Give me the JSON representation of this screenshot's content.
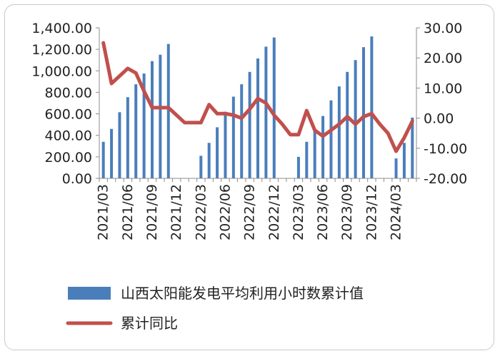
{
  "chart_data": {
    "type": "bar+line",
    "title": "",
    "x_categories": [
      "2021/03",
      "2021/04",
      "2021/05",
      "2021/06",
      "2021/07",
      "2021/08",
      "2021/09",
      "2021/10",
      "2021/11",
      "2021/12",
      "2022/01",
      "2022/02",
      "2022/03",
      "2022/04",
      "2022/05",
      "2022/06",
      "2022/07",
      "2022/08",
      "2022/09",
      "2022/10",
      "2022/11",
      "2022/12",
      "2023/01",
      "2023/02",
      "2023/03",
      "2023/04",
      "2023/05",
      "2023/06",
      "2023/07",
      "2023/08",
      "2023/09",
      "2023/10",
      "2023/11",
      "2023/12",
      "2024/01",
      "2024/02",
      "2024/03",
      "2024/04",
      "2024/05"
    ],
    "x_tick_labels": [
      "2021/03",
      "2021/06",
      "2021/09",
      "2021/12",
      "2022/03",
      "2022/06",
      "2022/09",
      "2022/12",
      "2023/03",
      "2023/06",
      "2023/09",
      "2023/12",
      "2024/03"
    ],
    "left_axis": {
      "min": 0,
      "max": 1400,
      "ticks": [
        "0.00",
        "200.00",
        "400.00",
        "600.00",
        "800.00",
        "1,000.00",
        "1,200.00",
        "1,400.00"
      ]
    },
    "right_axis": {
      "min": -20,
      "max": 30,
      "ticks": [
        "-20.00",
        "-10.00",
        "0.00",
        "10.00",
        "20.00",
        "30.00"
      ]
    },
    "series": [
      {
        "name": "山西太阳能发电平均利用小时数累计值",
        "type": "bar",
        "axis": "left",
        "color": "#4a7ebb",
        "values": [
          340,
          460,
          615,
          755,
          875,
          975,
          1090,
          1150,
          1250,
          null,
          null,
          null,
          210,
          330,
          475,
          620,
          760,
          875,
          990,
          1115,
          1225,
          1310,
          null,
          null,
          200,
          340,
          455,
          580,
          725,
          855,
          990,
          1100,
          1220,
          1320,
          null,
          null,
          185,
          330,
          565
        ]
      },
      {
        "name": "累计同比",
        "type": "line",
        "axis": "right",
        "color": "#c0504d",
        "values": [
          25,
          11.5,
          14,
          16.5,
          15,
          9,
          3.5,
          3.5,
          3.5,
          1,
          -1.5,
          -1.5,
          -1.5,
          4.5,
          1.5,
          1.5,
          1,
          0,
          3,
          6.5,
          5,
          1,
          -2,
          -5.5,
          -5.5,
          2.5,
          -4,
          -6,
          -4,
          -2,
          0.5,
          -2,
          0.5,
          1.5,
          -2,
          -5,
          -11,
          -6.5,
          -1
        ]
      }
    ],
    "legend_position": "bottom",
    "grid": false
  }
}
